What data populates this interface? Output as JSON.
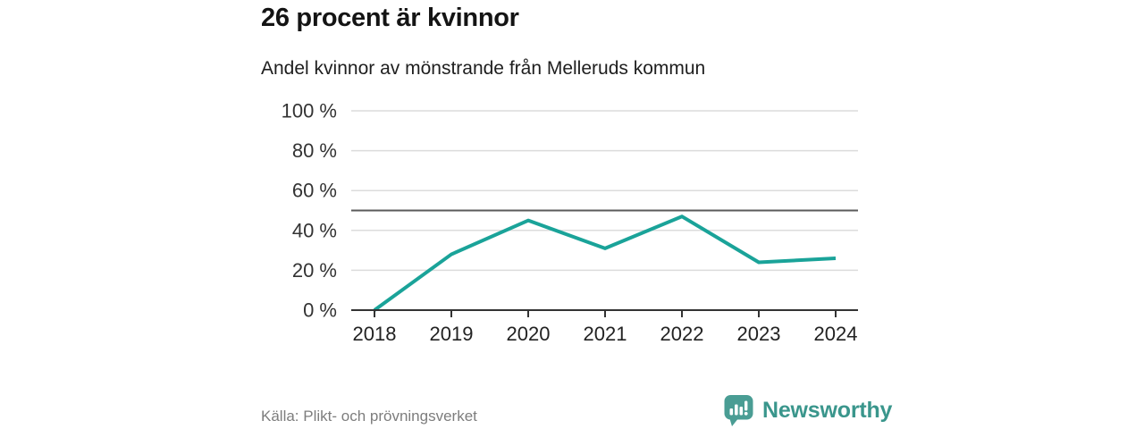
{
  "header": {
    "title": "26 procent är kvinnor",
    "subtitle": "Andel kvinnor av mönstrande från Melleruds kommun"
  },
  "chart_data": {
    "type": "line",
    "title": "26 procent är kvinnor",
    "subtitle": "Andel kvinnor av mönstrande från Melleruds kommun",
    "categories": [
      "2018",
      "2019",
      "2020",
      "2021",
      "2022",
      "2023",
      "2024"
    ],
    "series": [
      {
        "name": "Andel kvinnor av mönstrande",
        "values": [
          0,
          28,
          45,
          31,
          47,
          24,
          26
        ]
      }
    ],
    "unit": "%",
    "ylim": [
      0,
      100
    ],
    "y_ticks": [
      0,
      20,
      40,
      60,
      80,
      100
    ],
    "y_tick_suffix": " %",
    "reference_line": 50,
    "grid": true,
    "legend_position": "none",
    "line_color": "#1aa399",
    "gridline_color": "#dcdcdc",
    "reference_line_color": "#5a5a5a",
    "axis_color": "#333333"
  },
  "footer": {
    "source": "Källa: Plikt- och prövningsverket",
    "brand": "Newsworthy"
  },
  "colors": {
    "background": "#ffffff",
    "title_text": "#141414",
    "line": "#1aa399",
    "logo_icon": "#4a9d94",
    "logo_text": "#3a968c",
    "source_text": "#7d7d7d"
  }
}
